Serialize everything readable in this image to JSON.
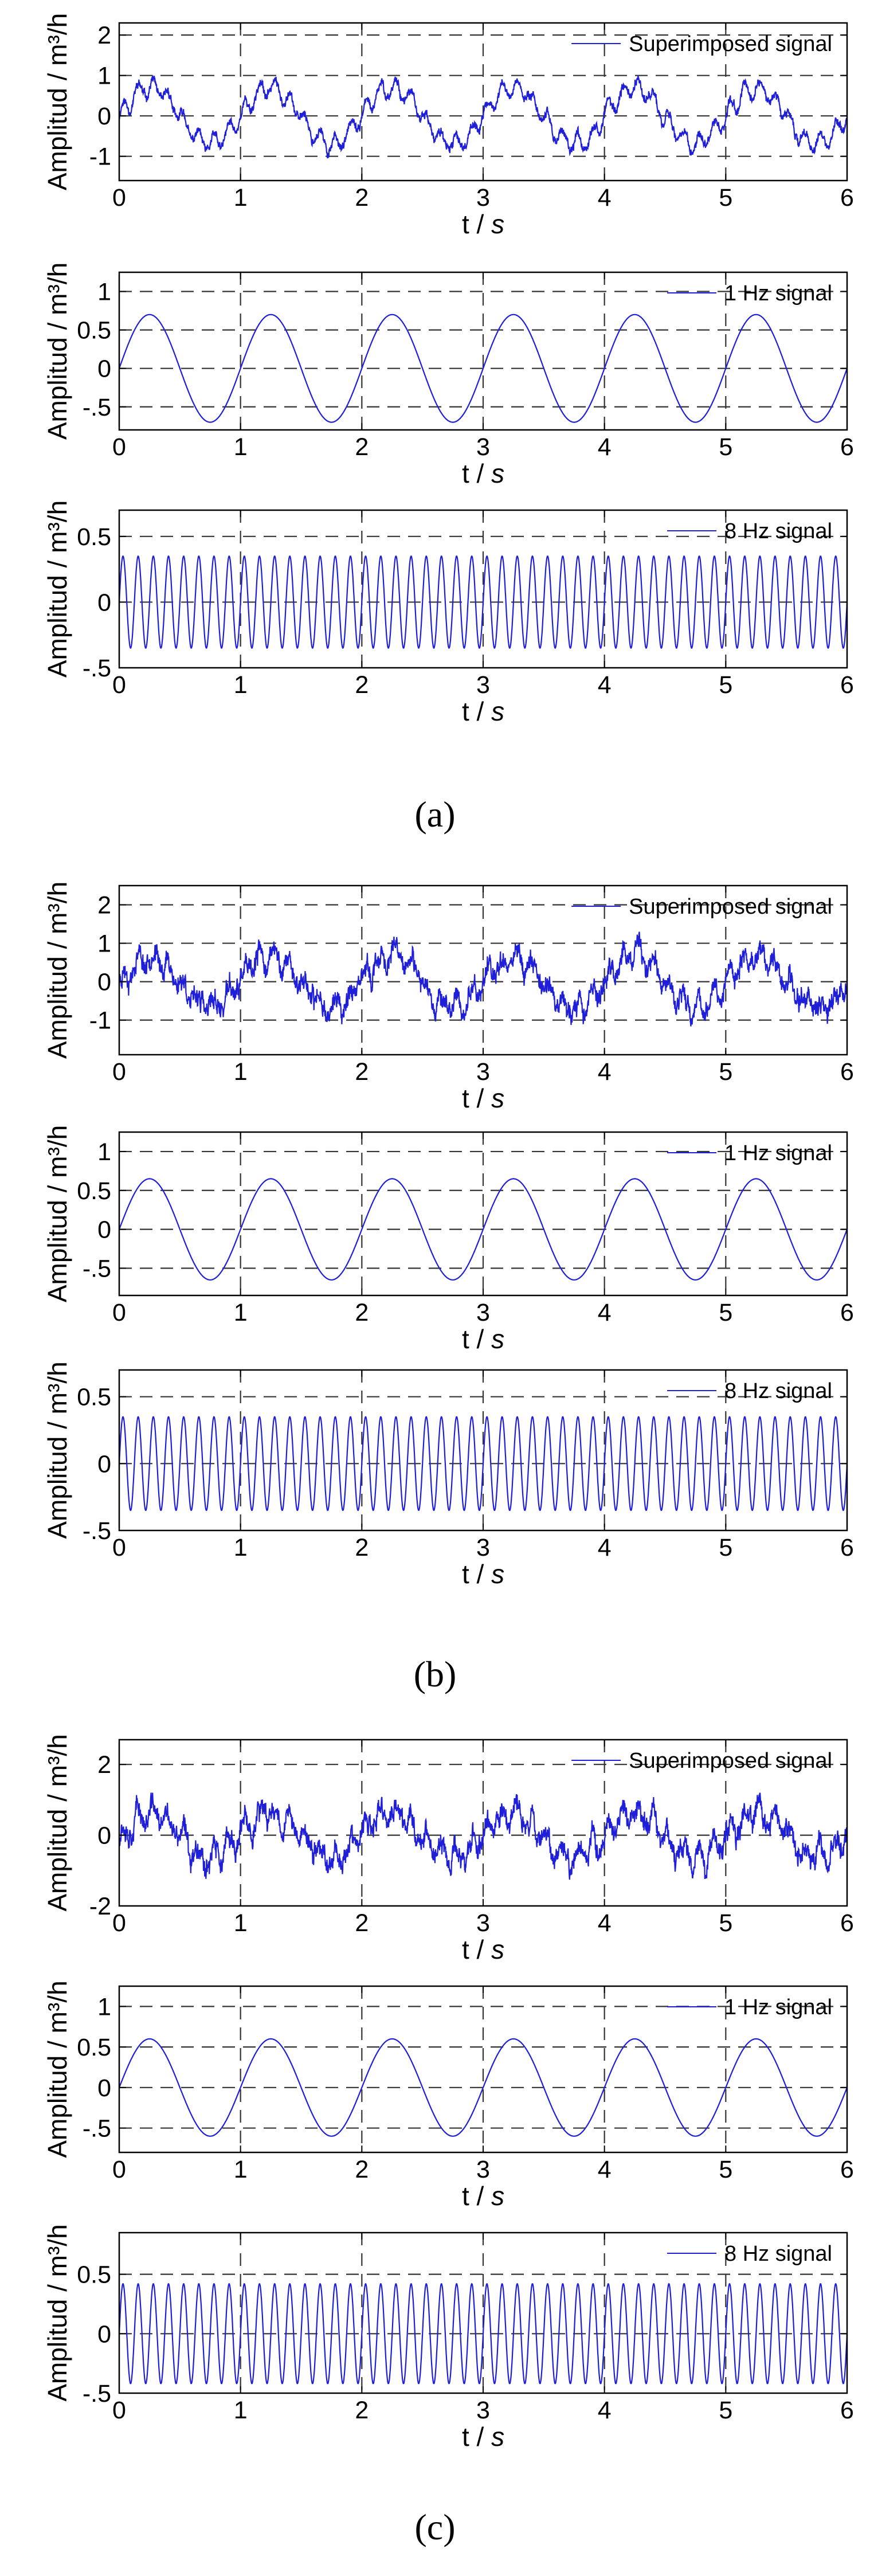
{
  "figure": {
    "subfigure_labels": [
      "(a)",
      "(b)",
      "(c)"
    ],
    "series_color": "#1f1fd9"
  },
  "chart_data": [
    {
      "id": "a1",
      "group": "a",
      "type": "line",
      "legend": "Superimposed signal",
      "xlabel_var": "t",
      "xlabel_unit": "s",
      "ylabel": "Amplitud / m³/h",
      "xlim": [
        0,
        6
      ],
      "ylim": [
        -1.6,
        2.3
      ],
      "yticks": [
        -1,
        0,
        1,
        2
      ],
      "xticks": [
        0,
        1,
        2,
        3,
        4,
        5,
        6
      ],
      "signal": {
        "kind": "superimposed",
        "a1": 0.7,
        "a8": 0.35,
        "noise": 0.12,
        "seed": 11
      }
    },
    {
      "id": "a2",
      "group": "a",
      "type": "line",
      "legend": "1 Hz signal",
      "xlabel_var": "t",
      "xlabel_unit": "s",
      "ylabel": "Amplitud / m³/h",
      "xlim": [
        0,
        6
      ],
      "ylim": [
        -0.8,
        1.25
      ],
      "yticks": [
        -0.5,
        0,
        0.5,
        1
      ],
      "xticks": [
        0,
        1,
        2,
        3,
        4,
        5,
        6
      ],
      "signal": {
        "kind": "sine",
        "freq": 1,
        "amp": 0.7
      }
    },
    {
      "id": "a3",
      "group": "a",
      "type": "line",
      "legend": "8 Hz signal",
      "xlabel_var": "t",
      "xlabel_unit": "s",
      "ylabel": "Amplitud / m³/h",
      "xlim": [
        0,
        6
      ],
      "ylim": [
        -0.5,
        0.7
      ],
      "yticks": [
        -0.5,
        0,
        0.5
      ],
      "xticks": [
        0,
        1,
        2,
        3,
        4,
        5,
        6
      ],
      "signal": {
        "kind": "sine",
        "freq": 8,
        "amp": 0.35
      }
    },
    {
      "id": "b1",
      "group": "b",
      "type": "line",
      "legend": "Superimposed signal",
      "xlabel_var": "t",
      "xlabel_unit": "s",
      "ylabel": "Amplitud / m³/h",
      "xlim": [
        0,
        6
      ],
      "ylim": [
        -1.9,
        2.5
      ],
      "yticks": [
        -1,
        0,
        1,
        2
      ],
      "xticks": [
        0,
        1,
        2,
        3,
        4,
        5,
        6
      ],
      "signal": {
        "kind": "superimposed",
        "a1": 0.65,
        "a8": 0.35,
        "noise": 0.28,
        "seed": 23
      }
    },
    {
      "id": "b2",
      "group": "b",
      "type": "line",
      "legend": "1 Hz signal",
      "xlabel_var": "t",
      "xlabel_unit": "s",
      "ylabel": "Amplitud / m³/h",
      "xlim": [
        0,
        6
      ],
      "ylim": [
        -0.85,
        1.25
      ],
      "yticks": [
        -0.5,
        0,
        0.5,
        1
      ],
      "xticks": [
        0,
        1,
        2,
        3,
        4,
        5,
        6
      ],
      "signal": {
        "kind": "sine",
        "freq": 1,
        "amp": 0.65
      }
    },
    {
      "id": "b3",
      "group": "b",
      "type": "line",
      "legend": "8 Hz signal",
      "xlabel_var": "t",
      "xlabel_unit": "s",
      "ylabel": "Amplitud / m³/h",
      "xlim": [
        0,
        6
      ],
      "ylim": [
        -0.5,
        0.7
      ],
      "yticks": [
        -0.5,
        0,
        0.5
      ],
      "xticks": [
        0,
        1,
        2,
        3,
        4,
        5,
        6
      ],
      "signal": {
        "kind": "sine",
        "freq": 8,
        "amp": 0.35
      }
    },
    {
      "id": "c1",
      "group": "c",
      "type": "line",
      "legend": "Superimposed signal",
      "xlabel_var": "t",
      "xlabel_unit": "s",
      "ylabel": "Amplitud / m³/h",
      "xlim": [
        0,
        6
      ],
      "ylim": [
        -2,
        2.7
      ],
      "yticks": [
        -2,
        0,
        2
      ],
      "xticks": [
        0,
        1,
        2,
        3,
        4,
        5,
        6
      ],
      "signal": {
        "kind": "superimposed",
        "a1": 0.6,
        "a8": 0.42,
        "noise": 0.32,
        "seed": 37
      }
    },
    {
      "id": "c2",
      "group": "c",
      "type": "line",
      "legend": "1 Hz signal",
      "xlabel_var": "t",
      "xlabel_unit": "s",
      "ylabel": "Amplitud / m³/h",
      "xlim": [
        0,
        6
      ],
      "ylim": [
        -0.8,
        1.25
      ],
      "yticks": [
        -0.5,
        0,
        0.5,
        1
      ],
      "xticks": [
        0,
        1,
        2,
        3,
        4,
        5,
        6
      ],
      "signal": {
        "kind": "sine",
        "freq": 1,
        "amp": 0.6
      }
    },
    {
      "id": "c3",
      "group": "c",
      "type": "line",
      "legend": "8 Hz signal",
      "xlabel_var": "t",
      "xlabel_unit": "s",
      "ylabel": "Amplitud / m³/h",
      "xlim": [
        0,
        6
      ],
      "ylim": [
        -0.5,
        0.85
      ],
      "yticks": [
        -0.5,
        0,
        0.5
      ],
      "xticks": [
        0,
        1,
        2,
        3,
        4,
        5,
        6
      ],
      "signal": {
        "kind": "sine",
        "freq": 8,
        "amp": 0.42
      }
    }
  ]
}
